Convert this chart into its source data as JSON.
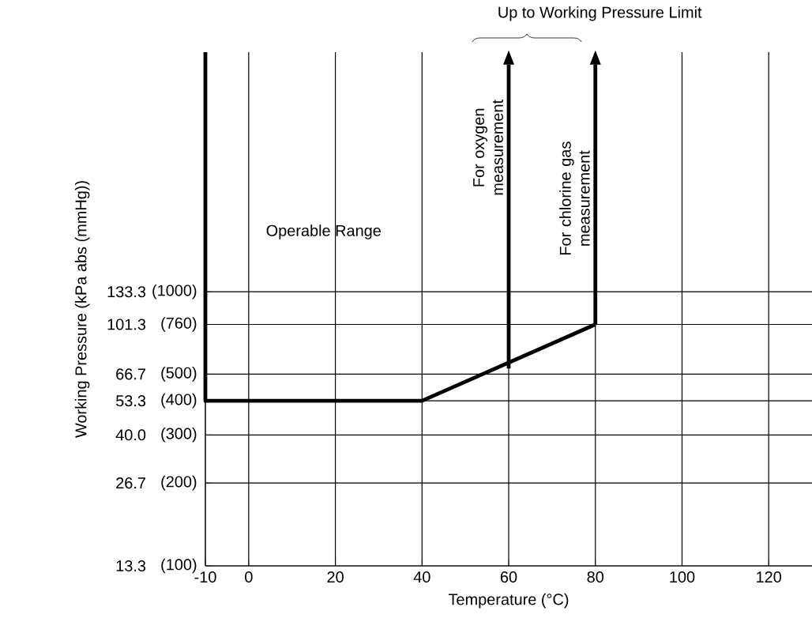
{
  "chart_data": {
    "type": "line",
    "xlabel": "Temperature (°C)",
    "ylabel": "Working Pressure (kPa abs (mmHg))",
    "xlim": [
      -10,
      130
    ],
    "ylim": [
      13.3,
      1000
    ],
    "log": true,
    "xticks": [
      -10,
      0,
      20,
      40,
      60,
      80,
      100,
      120
    ],
    "yticks": [
      13.3,
      26.7,
      {
        "value": 40,
        "label": "40.0"
      },
      53.3,
      66.7,
      101.3,
      133.3
    ],
    "grid": true,
    "marker": "none",
    "line_style": "solid",
    "series": [
      {
        "color": "#000000",
        "x": [
          -10,
          -10,
          40,
          80
        ],
        "values": [
          1000,
          53.3,
          53.3,
          101.3
        ]
      },
      {
        "color": "#000000",
        "x": [
          60,
          60
        ],
        "values": [
          70,
          900
        ]
      },
      {
        "color": "#000000",
        "x": [
          80,
          80
        ],
        "values": [
          101.3,
          900
        ]
      }
    ],
    "annotations": [
      "Operable Range",
      "Up to Working Pressure Limit",
      "For oxygen measurement",
      "For chlorine gas measurement",
      "(100)",
      "(200)",
      "(300)",
      "(400)",
      "(500)",
      "(760)",
      "(1000)"
    ]
  }
}
